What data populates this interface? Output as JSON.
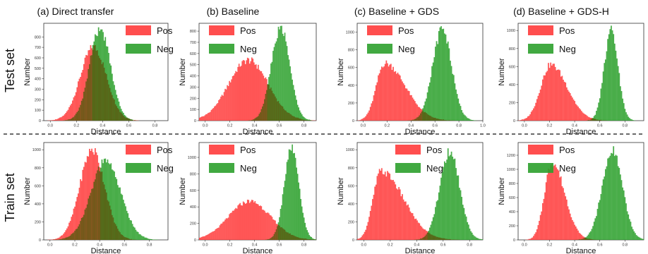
{
  "column_titles": [
    "(a) Direct transfer",
    "(b) Baseline",
    "(c) Baseline + GDS",
    "(d) Baseline + GDS-H"
  ],
  "row_labels": [
    "Test set",
    "Train set"
  ],
  "colors": {
    "pos": "#ff3b3b",
    "neg": "#2ca02c",
    "overlap": "#5a5a10"
  },
  "chart_data": [
    {
      "type": "histogram",
      "title": "(a) Direct transfer",
      "row": "Test set",
      "xlabel": "Distance",
      "ylabel": "Number",
      "xlim": [
        -0.05,
        0.9
      ],
      "ylim": [
        0,
        930
      ],
      "xticks": [
        "0.0",
        "0.2",
        "0.4",
        "0.6",
        "0.8"
      ],
      "yticks": [
        "0",
        "100",
        "200",
        "300",
        "400",
        "500",
        "600",
        "700",
        "800"
      ],
      "legend": [
        "Pos",
        "Neg"
      ],
      "series": [
        {
          "name": "Pos",
          "shape": "gauss",
          "mean": 0.33,
          "std": 0.1,
          "peak": 700
        },
        {
          "name": "Neg",
          "shape": "gauss",
          "mean": 0.38,
          "std": 0.08,
          "peak": 880
        }
      ]
    },
    {
      "type": "histogram",
      "title": "(b) Baseline",
      "row": "Test set",
      "xlabel": "Distance",
      "ylabel": "Number",
      "xlim": [
        -0.05,
        0.9
      ],
      "ylim": [
        0,
        870
      ],
      "xticks": [
        "0.0",
        "0.2",
        "0.4",
        "0.6",
        "0.8"
      ],
      "yticks": [
        "0",
        "100",
        "200",
        "300",
        "400",
        "500",
        "600",
        "700",
        "800"
      ],
      "legend": [
        "Pos",
        "Neg"
      ],
      "series": [
        {
          "name": "Pos",
          "shape": "gauss",
          "mean": 0.35,
          "std": 0.16,
          "peak": 540
        },
        {
          "name": "Neg",
          "shape": "gauss",
          "mean": 0.61,
          "std": 0.075,
          "peak": 830
        }
      ]
    },
    {
      "type": "histogram",
      "title": "(c) Baseline + GDS",
      "row": "Test set",
      "xlabel": "Distance",
      "ylabel": "Number",
      "xlim": [
        -0.05,
        1.0
      ],
      "ylim": [
        0,
        1100
      ],
      "xticks": [
        "0.0",
        "0.2",
        "0.4",
        "0.6",
        "0.8",
        "1.0"
      ],
      "yticks": [
        "0",
        "200",
        "400",
        "600",
        "800",
        "1000"
      ],
      "legend": [
        "Pos",
        "Neg"
      ],
      "series": [
        {
          "name": "Pos",
          "shape": "skew",
          "mean": 0.18,
          "std_left": 0.07,
          "std_right": 0.17,
          "peak": 650
        },
        {
          "name": "Neg",
          "shape": "gauss",
          "mean": 0.66,
          "std": 0.08,
          "peak": 1020
        }
      ]
    },
    {
      "type": "histogram",
      "title": "(d) Baseline + GDS-H",
      "row": "Test set",
      "xlabel": "Distance",
      "ylabel": "Number",
      "xlim": [
        -0.05,
        0.95
      ],
      "ylim": [
        0,
        1080
      ],
      "xticks": [
        "0.0",
        "0.2",
        "0.4",
        "0.6",
        "0.8"
      ],
      "yticks": [
        "0",
        "200",
        "400",
        "600",
        "800",
        "1000"
      ],
      "legend": [
        "Pos",
        "Neg"
      ],
      "series": [
        {
          "name": "Pos",
          "shape": "skew",
          "mean": 0.21,
          "std_left": 0.08,
          "std_right": 0.13,
          "peak": 620
        },
        {
          "name": "Neg",
          "shape": "gauss",
          "mean": 0.69,
          "std": 0.055,
          "peak": 1000
        }
      ]
    },
    {
      "type": "histogram",
      "title": "(a) Direct transfer",
      "row": "Train set",
      "xlabel": "Distance",
      "ylabel": "Number",
      "xlim": [
        -0.05,
        0.95
      ],
      "ylim": [
        0,
        1080
      ],
      "xticks": [
        "0.0",
        "0.2",
        "0.4",
        "0.6",
        "0.8"
      ],
      "yticks": [
        "0",
        "200",
        "400",
        "600",
        "800",
        "1000"
      ],
      "legend": [
        "Pos",
        "Neg"
      ],
      "series": [
        {
          "name": "Pos",
          "shape": "gauss",
          "mean": 0.34,
          "std": 0.1,
          "peak": 1000
        },
        {
          "name": "Neg",
          "shape": "gauss",
          "mean": 0.45,
          "std": 0.12,
          "peak": 870
        }
      ]
    },
    {
      "type": "histogram",
      "title": "(b) Baseline",
      "row": "Train set",
      "xlabel": "Distance",
      "ylabel": "Number",
      "xlim": [
        -0.05,
        0.9
      ],
      "ylim": [
        0,
        1180
      ],
      "xticks": [
        "0.0",
        "0.2",
        "0.4",
        "0.6",
        "0.8"
      ],
      "yticks": [
        "0",
        "200",
        "400",
        "600",
        "800",
        "1000"
      ],
      "legend": [
        "Pos",
        "Neg"
      ],
      "series": [
        {
          "name": "Pos",
          "shape": "gauss",
          "mean": 0.36,
          "std": 0.17,
          "peak": 470
        },
        {
          "name": "Neg",
          "shape": "gauss",
          "mean": 0.7,
          "std": 0.06,
          "peak": 1100
        }
      ]
    },
    {
      "type": "histogram",
      "title": "(c) Baseline + GDS",
      "row": "Train set",
      "xlabel": "Distance",
      "ylabel": "Number",
      "xlim": [
        -0.05,
        0.9
      ],
      "ylim": [
        0,
        1080
      ],
      "xticks": [
        "0.0",
        "0.2",
        "0.4",
        "0.6",
        "0.8"
      ],
      "yticks": [
        "0",
        "200",
        "400",
        "600",
        "800",
        "1000"
      ],
      "legend": [
        "Pos",
        "Neg"
      ],
      "series": [
        {
          "name": "Pos",
          "shape": "skew",
          "mean": 0.13,
          "std_left": 0.06,
          "std_right": 0.17,
          "peak": 760
        },
        {
          "name": "Neg",
          "shape": "gauss",
          "mean": 0.65,
          "std": 0.075,
          "peak": 980
        }
      ]
    },
    {
      "type": "histogram",
      "title": "(d) Baseline + GDS-H",
      "row": "Train set",
      "xlabel": "Distance",
      "ylabel": "Number",
      "xlim": [
        -0.05,
        0.95
      ],
      "ylim": [
        0,
        1380
      ],
      "xticks": [
        "0.0",
        "0.2",
        "0.4",
        "0.6",
        "0.8"
      ],
      "yticks": [
        "0",
        "200",
        "400",
        "600",
        "800",
        "1000",
        "1200"
      ],
      "legend": [
        "Pos",
        "Neg"
      ],
      "series": [
        {
          "name": "Pos",
          "shape": "skew",
          "mean": 0.22,
          "std_left": 0.06,
          "std_right": 0.1,
          "peak": 1100
        },
        {
          "name": "Neg",
          "shape": "gauss",
          "mean": 0.7,
          "std": 0.08,
          "peak": 1280
        }
      ]
    }
  ]
}
